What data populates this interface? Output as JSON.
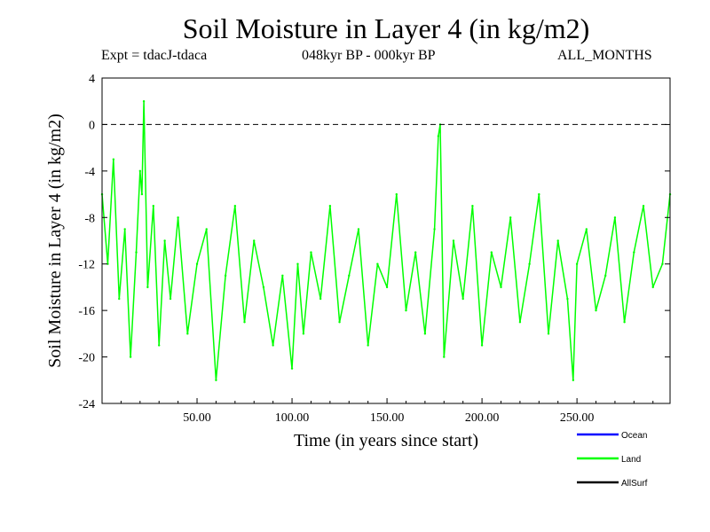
{
  "chart_data": {
    "type": "line",
    "title": "Soil Moisture in Layer 4 (in kg/m2)",
    "subtitle_left": "Expt = tdacJ-tdaca",
    "subtitle_center": "048kyr BP - 000kyr BP",
    "subtitle_right": "ALL_MONTHS",
    "xlabel": "Time (in years since start)",
    "ylabel": "Soil Moisture in Layer 4 (in kg/m2)",
    "xlim": [
      0,
      299
    ],
    "ylim": [
      -24,
      4
    ],
    "x_ticks": [
      50,
      100,
      150,
      200,
      250
    ],
    "x_tick_labels": [
      "50.00",
      "100.00",
      "150.00",
      "200.00",
      "250.00"
    ],
    "y_ticks": [
      4,
      0,
      -4,
      -8,
      -12,
      -16,
      -20,
      -24
    ],
    "y_tick_labels": [
      "4",
      "0",
      "-4",
      "-8",
      "-12",
      "-16",
      "-20",
      "-24"
    ],
    "reference_line": 0,
    "series": [
      {
        "name": "Ocean",
        "color": "#0000ff",
        "values": []
      },
      {
        "name": "Land",
        "color": "#00ff00",
        "x": [
          0,
          3,
          6,
          9,
          12,
          15,
          18,
          20,
          21,
          22,
          24,
          27,
          30,
          33,
          36,
          40,
          45,
          50,
          55,
          60,
          65,
          70,
          75,
          80,
          85,
          90,
          95,
          100,
          103,
          106,
          110,
          115,
          120,
          125,
          130,
          135,
          140,
          145,
          150,
          155,
          160,
          165,
          170,
          175,
          177,
          178,
          180,
          185,
          190,
          195,
          200,
          205,
          210,
          215,
          220,
          225,
          230,
          235,
          240,
          245,
          248,
          250,
          255,
          260,
          265,
          270,
          275,
          280,
          285,
          290,
          295,
          299
        ],
        "values": [
          -6,
          -12,
          -3,
          -15,
          -9,
          -20,
          -11,
          -4,
          -6,
          2,
          -14,
          -7,
          -19,
          -10,
          -15,
          -8,
          -18,
          -12,
          -9,
          -22,
          -13,
          -7,
          -17,
          -10,
          -14,
          -19,
          -13,
          -21,
          -12,
          -18,
          -11,
          -15,
          -7,
          -17,
          -13,
          -9,
          -19,
          -12,
          -14,
          -6,
          -16,
          -11,
          -18,
          -9,
          -1,
          0,
          -20,
          -10,
          -15,
          -7,
          -19,
          -11,
          -14,
          -8,
          -17,
          -12,
          -6,
          -18,
          -10,
          -15,
          -22,
          -12,
          -9,
          -16,
          -13,
          -8,
          -17,
          -11,
          -7,
          -14,
          -12,
          -6
        ]
      },
      {
        "name": "AllSurf",
        "color": "#000000",
        "values": []
      }
    ],
    "legend_position": "bottom-right"
  }
}
